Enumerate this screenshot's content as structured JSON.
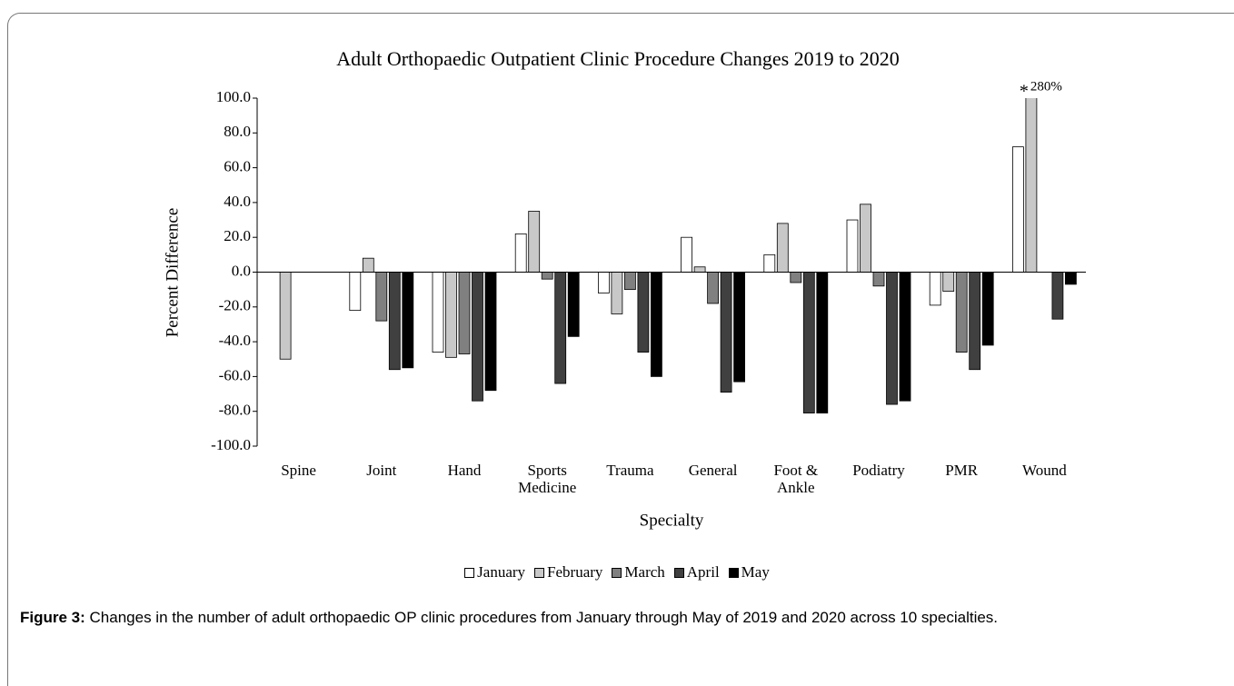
{
  "chart_data": {
    "type": "bar",
    "title": "Adult Orthopaedic Outpatient Clinic Procedure Changes 2019 to 2020",
    "x_label": "Specialty",
    "y_label": "Percent Difference",
    "categories": [
      "Spine",
      "Joint",
      "Hand",
      "Sports Medicine",
      "Trauma",
      "General",
      "Foot & Ankle",
      "Podiatry",
      "PMR",
      "Wound"
    ],
    "series": [
      {
        "name": "January",
        "color": "#ffffff",
        "values": [
          null,
          -22,
          -46,
          22,
          -12,
          20,
          10,
          30,
          -19,
          72
        ]
      },
      {
        "name": "February",
        "color": "#c8c8c8",
        "values": [
          -50,
          8,
          -49,
          35,
          -24,
          3,
          28,
          39,
          -11,
          280
        ],
        "value_labels": [
          null,
          null,
          null,
          null,
          null,
          null,
          null,
          null,
          null,
          "280%"
        ]
      },
      {
        "name": "March",
        "color": "#808080",
        "values": [
          null,
          -28,
          -47,
          -4,
          -10,
          -18,
          -6,
          -8,
          -46,
          null
        ]
      },
      {
        "name": "April",
        "color": "#404040",
        "values": [
          null,
          -56,
          -74,
          -64,
          -46,
          -69,
          -81,
          -76,
          -56,
          -27
        ]
      },
      {
        "name": "May",
        "color": "#000000",
        "values": [
          null,
          -55,
          -68,
          -37,
          -60,
          -63,
          -81,
          -74,
          -42,
          -7
        ]
      }
    ],
    "annotations": [
      "*"
    ],
    "ylim": [
      -100,
      100
    ],
    "yticks": [
      {
        "value": -100,
        "label": "-100.0"
      },
      {
        "value": -80,
        "label": "-80.0"
      },
      {
        "value": -60,
        "label": "-60.0"
      },
      {
        "value": -40,
        "label": "-40.0"
      },
      {
        "value": -20,
        "label": "-20.0"
      },
      {
        "value": 0,
        "label": "0.0"
      },
      {
        "value": 20,
        "label": "20.0"
      },
      {
        "value": 40,
        "label": "40.0"
      },
      {
        "value": 60,
        "label": "60.0"
      },
      {
        "value": 80,
        "label": "80.0"
      },
      {
        "value": 100,
        "label": "100.0"
      }
    ],
    "grid": false
  },
  "caption": {
    "label": "Figure 3:",
    "text": "Changes in the number of adult orthopaedic OP clinic procedures from January through May of 2019 and 2020 across 10 specialties."
  }
}
